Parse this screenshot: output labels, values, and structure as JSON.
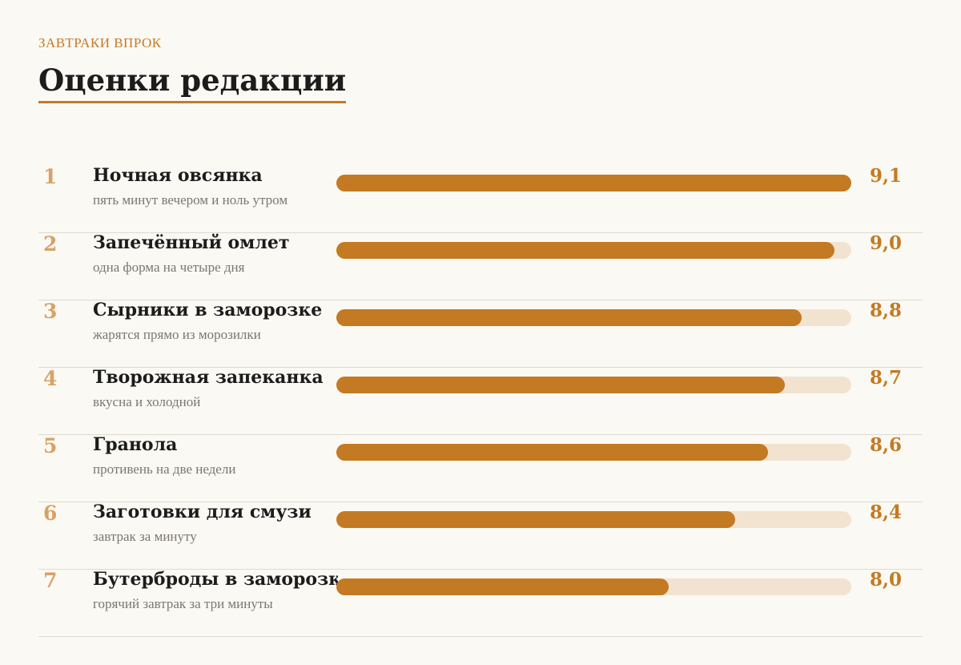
{
  "kicker": "ЗАВТРАКИ ВПРОК",
  "title": "Оценки редакции",
  "colors": {
    "accent": "#c47a22",
    "track": "#f2e3d0",
    "rank": "#d8a266"
  },
  "chart_data": {
    "type": "bar",
    "orientation": "horizontal",
    "categories": [
      "Ночная овсянка",
      "Запечённый омлет",
      "Сырники в заморозке",
      "Творожная запеканка",
      "Гранола",
      "Заготовки для смузи",
      "Бутерброды в заморозке"
    ],
    "values": [
      9.1,
      9.0,
      8.8,
      8.7,
      8.6,
      8.4,
      8.0
    ],
    "xlim": [
      6.0,
      9.1
    ],
    "grid": false,
    "legend": "none"
  },
  "rows": [
    {
      "rank": "1",
      "name": "Ночная овсянка",
      "subtitle": "пять минут вечером и ноль утром",
      "score": "9,1"
    },
    {
      "rank": "2",
      "name": "Запечённый омлет",
      "subtitle": "одна форма на четыре дня",
      "score": "9,0"
    },
    {
      "rank": "3",
      "name": "Сырники в заморозке",
      "subtitle": "жарятся прямо из морозилки",
      "score": "8,8"
    },
    {
      "rank": "4",
      "name": "Творожная запеканка",
      "subtitle": "вкусна и холодной",
      "score": "8,7"
    },
    {
      "rank": "5",
      "name": "Гранола",
      "subtitle": "противень на две недели",
      "score": "8,6"
    },
    {
      "rank": "6",
      "name": "Заготовки для смузи",
      "subtitle": "завтрак за минуту",
      "score": "8,4"
    },
    {
      "rank": "7",
      "name": "Бутерброды в заморозке",
      "subtitle": "горячий завтрак за три минуты",
      "score": "8,0"
    }
  ]
}
